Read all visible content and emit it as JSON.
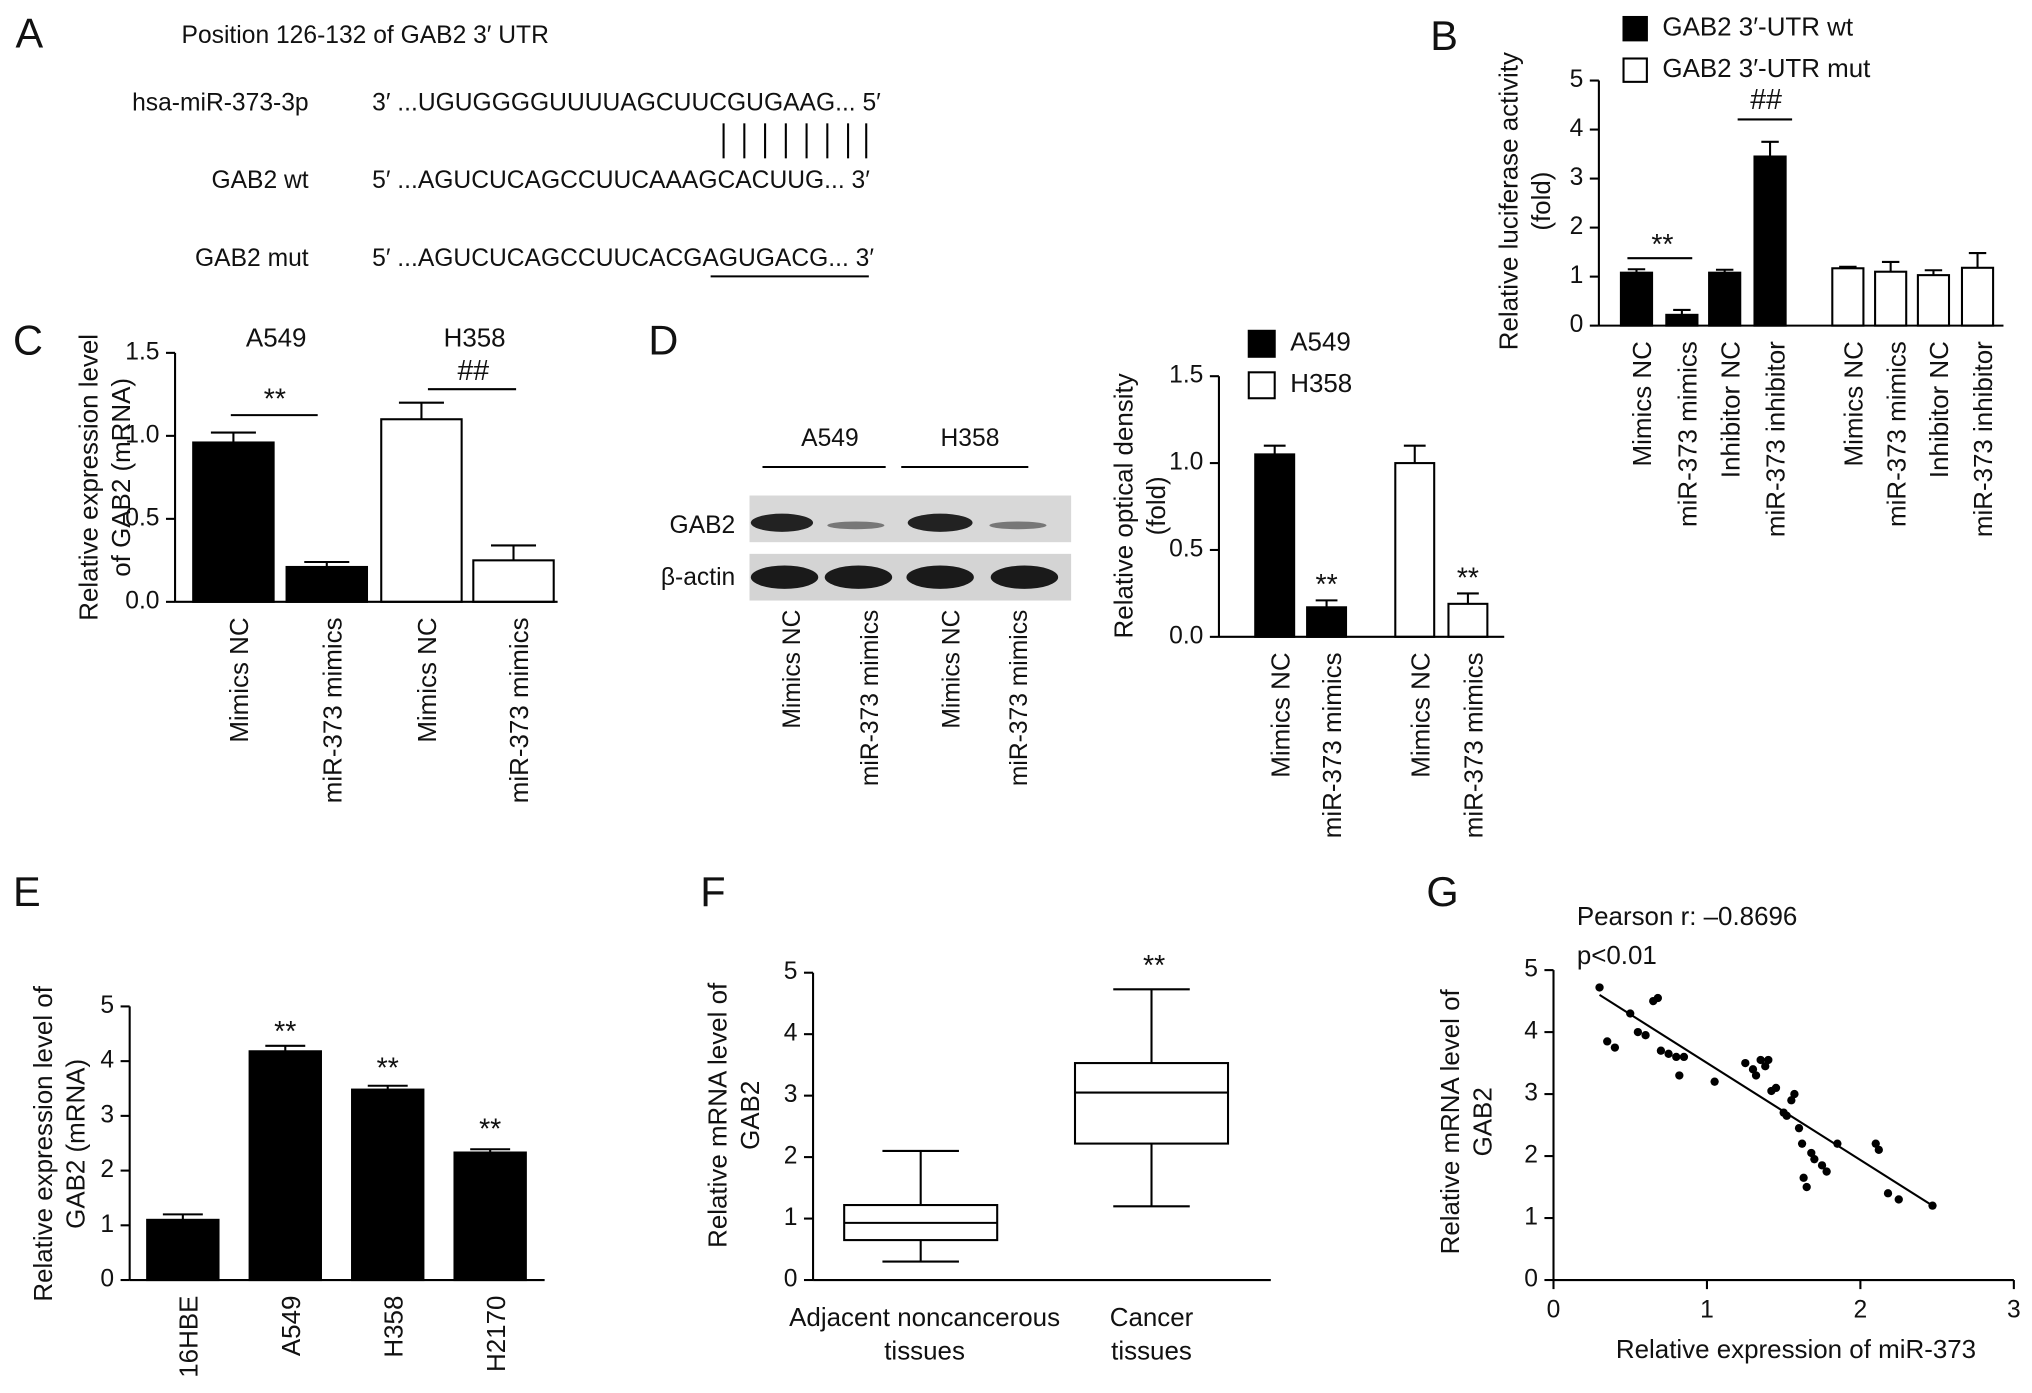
{
  "sequence_panel": {
    "panel": "A",
    "title": "Position 126-132 of GAB2 3′ UTR",
    "rows": [
      {
        "label": "hsa-miR-373-3p",
        "sequence": "3′ ...UGUGGGGUUUUAGCUUCGUGAAG... 5′"
      },
      {
        "label": "GAB2 wt",
        "sequence": "5′ ...AGUCUCAGCCUUCAAAGCACUUG... 3′"
      },
      {
        "label": "GAB2 mut",
        "sequence": "5′ ...AGUCUCAGCCUUCACGAGUGACG... 3′"
      }
    ]
  },
  "blot_panel": {
    "groups": [
      "A549",
      "H358"
    ],
    "rows": [
      "GAB2",
      "β-actin"
    ],
    "lanes": [
      "Mimics NC",
      "miR-373 mimics",
      "Mimics NC",
      "miR-373 mimics"
    ]
  },
  "chart_data": [
    {
      "type": "bar",
      "panel": "B",
      "ylabel": [
        "Relative luciferase activity",
        "(fold)"
      ],
      "categories": [
        "Mimics NC",
        "miR-373 mimics",
        "Inhibitor NC",
        "miR-373 inhibitor",
        "Mimics NC",
        "miR-373 mimics",
        "Inhibitor NC",
        "miR-373 inhibitor"
      ],
      "series": [
        {
          "name": "GAB2 3′-UTR wt",
          "color": "#000000",
          "values": [
            1.08,
            0.22,
            1.08,
            3.45,
            null,
            null,
            null,
            null
          ],
          "errors": [
            0.07,
            0.1,
            0.06,
            0.3,
            null,
            null,
            null,
            null
          ]
        },
        {
          "name": "GAB2 3′-UTR mut",
          "color": "#ffffff",
          "values": [
            null,
            null,
            null,
            null,
            1.17,
            1.1,
            1.03,
            1.18
          ],
          "errors": [
            null,
            null,
            null,
            null,
            0.03,
            0.2,
            0.1,
            0.3
          ]
        }
      ],
      "ylim": [
        0,
        5
      ],
      "yticks": [
        0,
        1,
        2,
        3,
        4,
        5
      ],
      "legend": "top",
      "annotations": [
        "**",
        "##"
      ]
    },
    {
      "type": "bar",
      "panel": "C",
      "ylabel": [
        "Relative expression level",
        "of GAB2 (mRNA)"
      ],
      "categories": [
        "Mimics NC",
        "miR-373 mimics",
        "Mimics NC",
        "miR-373 mimics"
      ],
      "series": [
        {
          "name": "A549",
          "color": "#000000",
          "values": [
            0.96,
            0.21,
            null,
            null
          ],
          "errors": [
            0.06,
            0.03,
            null,
            null
          ]
        },
        {
          "name": "H358",
          "color": "#ffffff",
          "values": [
            null,
            null,
            1.1,
            0.25
          ],
          "errors": [
            null,
            null,
            0.1,
            0.09
          ]
        }
      ],
      "ylim": [
        0,
        1.5
      ],
      "yticks": [
        {
          "value": 0,
          "label": "0.0"
        },
        0.5,
        {
          "value": 1,
          "label": "1.0"
        },
        1.5
      ],
      "annotations": [
        "**",
        "##"
      ]
    },
    {
      "type": "bar",
      "panel": "D",
      "ylabel": [
        "Relative optical density",
        "(fold)"
      ],
      "categories": [
        "Mimics NC",
        "miR-373 mimics",
        "Mimics NC",
        "miR-373 mimics"
      ],
      "series": [
        {
          "name": "A549",
          "color": "#000000",
          "values": [
            1.05,
            0.17,
            null,
            null
          ],
          "errors": [
            0.05,
            0.04,
            null,
            null
          ]
        },
        {
          "name": "H358",
          "color": "#ffffff",
          "values": [
            null,
            null,
            1.0,
            0.19
          ],
          "errors": [
            null,
            null,
            0.1,
            0.06
          ]
        }
      ],
      "ylim": [
        0,
        1.5
      ],
      "yticks": [
        {
          "value": 0,
          "label": "0.0"
        },
        0.5,
        {
          "value": 1,
          "label": "1.0"
        },
        1.5
      ],
      "legend": "top",
      "annotations": [
        "**",
        "**"
      ]
    },
    {
      "type": "bar",
      "panel": "E",
      "ylabel": [
        "Relative expression level of",
        "GAB2 (mRNA)"
      ],
      "categories": [
        "16HBE",
        "A549",
        "H358",
        "H2170"
      ],
      "series": [
        {
          "name": "GAB2",
          "color": "#000000",
          "values": [
            1.1,
            4.18,
            3.48,
            2.33
          ],
          "errors": [
            0.1,
            0.1,
            0.07,
            0.06
          ]
        }
      ],
      "ylim": [
        0,
        5
      ],
      "yticks": [
        0,
        1,
        2,
        3,
        4,
        5
      ],
      "annotations": [
        "**",
        "**",
        "**"
      ]
    },
    {
      "type": "box",
      "panel": "F",
      "ylabel": [
        "Relative mRNA level of",
        "GAB2"
      ],
      "categories": [
        [
          "Adjacent noncancerous",
          "tissues"
        ],
        [
          "Cancer",
          "tissues"
        ]
      ],
      "boxes": [
        {
          "min": 0.3,
          "q1": 0.65,
          "median": 0.93,
          "q3": 1.22,
          "max": 2.1
        },
        {
          "min": 1.2,
          "q1": 2.22,
          "median": 3.05,
          "q3": 3.53,
          "max": 4.73
        }
      ],
      "ylim": [
        0,
        5
      ],
      "yticks": [
        0,
        1,
        2,
        3,
        4,
        5
      ],
      "annotations": [
        "**"
      ]
    },
    {
      "type": "scatter",
      "panel": "G",
      "stats": [
        "Pearson r: –0.8696",
        "p<0.01"
      ],
      "xlabel": "Relative expression of miR-373",
      "ylabel": [
        "Relative mRNA level of",
        "GAB2"
      ],
      "x": [
        0.3,
        0.35,
        0.4,
        0.5,
        0.55,
        0.6,
        0.65,
        0.68,
        0.7,
        0.75,
        0.8,
        0.82,
        0.85,
        1.05,
        1.25,
        1.3,
        1.32,
        1.35,
        1.38,
        1.4,
        1.42,
        1.45,
        1.5,
        1.52,
        1.55,
        1.57,
        1.6,
        1.62,
        1.63,
        1.65,
        1.68,
        1.7,
        1.75,
        1.78,
        1.85,
        2.1,
        2.12,
        2.18,
        2.25,
        2.47
      ],
      "values": [
        4.72,
        3.85,
        3.75,
        4.3,
        4.0,
        3.95,
        4.5,
        4.55,
        3.7,
        3.65,
        3.6,
        3.3,
        3.6,
        3.2,
        3.5,
        3.4,
        3.3,
        3.55,
        3.45,
        3.55,
        3.05,
        3.1,
        2.7,
        2.65,
        2.9,
        3.0,
        2.45,
        2.2,
        1.65,
        1.5,
        2.05,
        1.95,
        1.85,
        1.75,
        2.2,
        2.2,
        2.1,
        1.4,
        1.3,
        1.2
      ],
      "fit_line": {
        "x": [
          0.3,
          2.47
        ],
        "y": [
          4.6,
          1.2
        ]
      },
      "color": "#000000",
      "xlim": [
        0,
        3
      ],
      "xticks": [
        0,
        1,
        2,
        3
      ],
      "ylim": [
        0,
        5
      ],
      "yticks": [
        0,
        1,
        2,
        3,
        4,
        5
      ]
    }
  ]
}
